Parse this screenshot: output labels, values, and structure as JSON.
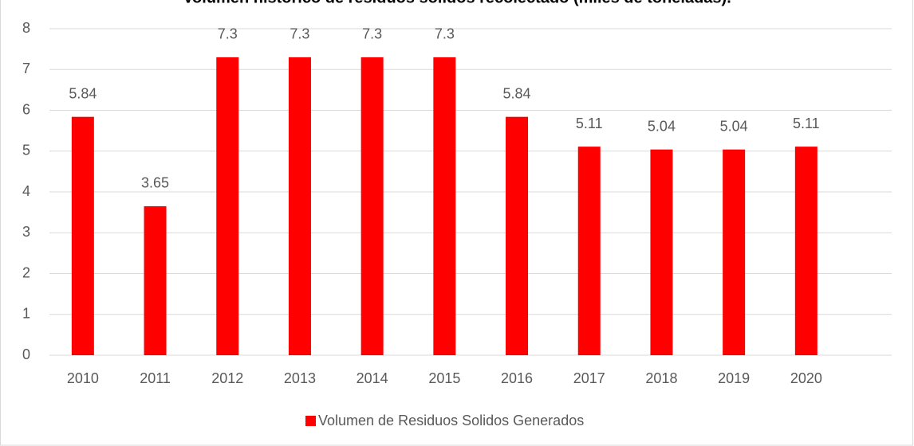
{
  "chart_data": {
    "type": "bar",
    "title": "Volumen histórico de residuos sólidos recolectado (miles de toneladas).",
    "categories": [
      "2010",
      "2011",
      "2012",
      "2013",
      "2014",
      "2015",
      "2016",
      "2017",
      "2018",
      "2019",
      "2020"
    ],
    "series": [
      {
        "name": "Volumen de Residuos Solidos Generados",
        "color": "#ff0000",
        "values": [
          5.84,
          3.65,
          7.3,
          7.3,
          7.3,
          7.3,
          5.84,
          5.11,
          5.04,
          5.04,
          5.11
        ]
      }
    ],
    "ylim": [
      0,
      8
    ],
    "yticks": [
      0,
      1,
      2,
      3,
      4,
      5,
      6,
      7,
      8
    ],
    "grid": true,
    "legend": "bottom"
  }
}
